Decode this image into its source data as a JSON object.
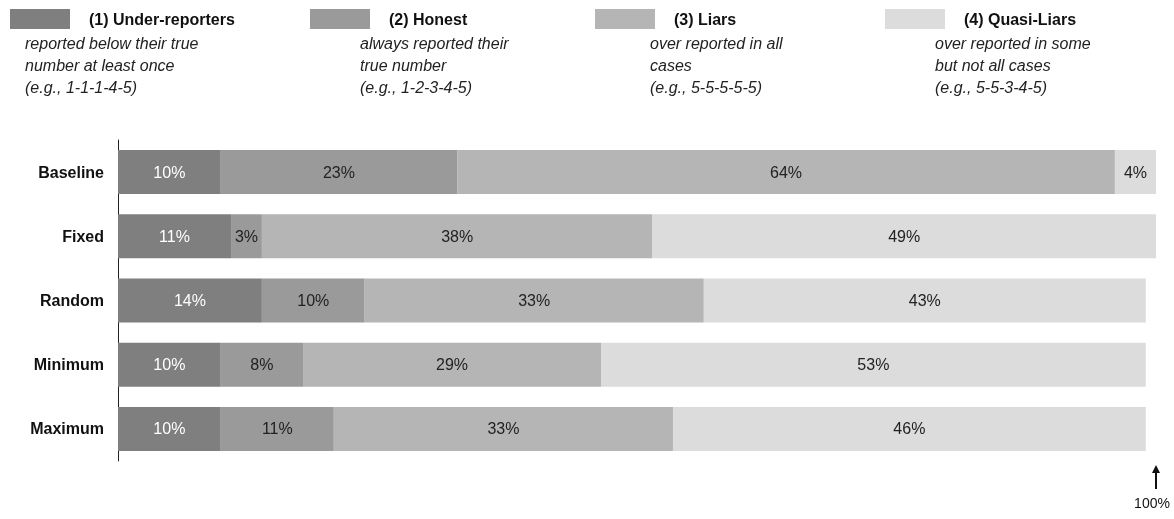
{
  "chart_data": {
    "type": "bar",
    "orientation": "horizontal",
    "stacked": true,
    "categories": [
      "Baseline",
      "Fixed",
      "Random",
      "Minimum",
      "Maximum"
    ],
    "series": [
      {
        "name": "(1) Under-reporters",
        "color": "#7f7f7f",
        "values": [
          10,
          11,
          14,
          10,
          10
        ],
        "value_labels": [
          "10%",
          "11%",
          "14%",
          "10%",
          "10%"
        ]
      },
      {
        "name": "(2) Honest",
        "color": "#9a9a9a",
        "values": [
          23,
          3,
          10,
          8,
          11
        ],
        "value_labels": [
          "23%",
          "3%",
          "10%",
          "8%",
          "11%"
        ]
      },
      {
        "name": "(3) Liars",
        "color": "#b5b5b5",
        "values": [
          64,
          38,
          33,
          29,
          33
        ],
        "value_labels": [
          "64%",
          "38%",
          "33%",
          "29%",
          "33%"
        ]
      },
      {
        "name": "(4) Quasi-Liars",
        "color": "#dcdcdc",
        "values": [
          4,
          49,
          43,
          53,
          46
        ],
        "value_labels": [
          "4%",
          "49%",
          "43%",
          "53%",
          "46%"
        ]
      }
    ],
    "annotations": [
      "reported below their true\nnumber at least once\n(e.g., 1-1-1-4-5)",
      "always reported their\ntrue number\n(e.g., 1-2-3-4-5)",
      "over reported in all\ncases\n(e.g., 5-5-5-5-5)",
      "over reported in some\nbut not all cases\n(e.g., 5-5-3-4-5)",
      "100%"
    ],
    "legend": "top",
    "tick_labels": "y",
    "grid": false
  }
}
